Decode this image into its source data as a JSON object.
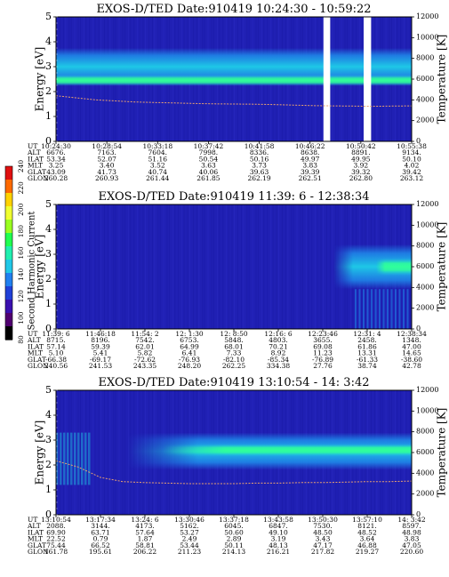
{
  "colors": {
    "background": "#2020b4",
    "band_bright": "#1ec8e6",
    "band_mid": "#1f86e8",
    "band_core": "#30ff9a",
    "temperature_trace": "#e8a070",
    "gap": "#ffffff"
  },
  "colorbar": {
    "label": "Second Harmonic Current",
    "ticks": [
      "240",
      "220",
      "200",
      "180",
      "160",
      "140",
      "120",
      "100",
      "80"
    ],
    "colors": [
      "#e01010",
      "#ff6a00",
      "#ffd200",
      "#f0ff30",
      "#9aff20",
      "#20ff50",
      "#20f0b0",
      "#20c8e8",
      "#2080f0",
      "#2040d8",
      "#3a10b0",
      "#500070",
      "#000000"
    ]
  },
  "row_labels": [
    "UT",
    "ALT",
    "ILAT",
    "MLT",
    "GLAT",
    "GLON"
  ],
  "chart_data": [
    {
      "type": "heatmap",
      "title": "EXOS-D/TED   Date:910419  10:24:30 - 10:59:22",
      "ylabel": "Energy [eV]",
      "y2label": "Temperature [K]",
      "ylim": [
        0,
        5
      ],
      "y2lim": [
        0,
        12000
      ],
      "yticks": [
        "0",
        "1",
        "2",
        "3",
        "4",
        "5"
      ],
      "y2ticks": [
        "0",
        "2000",
        "4000",
        "6000",
        "8000",
        "10000",
        "12000"
      ],
      "bands": [
        {
          "center_ev": 3.0,
          "width_ev": 1.5,
          "level": "bright"
        },
        {
          "center_ev": 2.45,
          "width_ev": 0.45,
          "level": "core"
        }
      ],
      "temperature_k": [
        4400,
        4200,
        4000,
        3900,
        3800,
        3750,
        3700,
        3650,
        3620,
        3600,
        3580,
        3550,
        3500,
        3450,
        3420,
        3400,
        3380,
        3400,
        3420
      ],
      "gaps": [
        [
          0.752,
          0.771
        ],
        [
          0.865,
          0.886
        ]
      ],
      "orbit": {
        "UT": [
          "10:24:30",
          "10:28:54",
          "10:33:18",
          "10:37:42",
          "10:41:58",
          "10:46:22",
          "10:50:42",
          "10:55:38"
        ],
        "ALT": [
          "6676.",
          "7163.",
          "7604.",
          "7998.",
          "8336.",
          "8638.",
          "8891.",
          "9134."
        ],
        "ILAT": [
          "53.34",
          "52.07",
          "51.16",
          "50.54",
          "50.16",
          "49.97",
          "49.95",
          "50.10"
        ],
        "MLT": [
          "3.25",
          "3.40",
          "3.52",
          "3.63",
          "3.73",
          "3.83",
          "3.92",
          "4.02"
        ],
        "GLAT": [
          "43.09",
          "41.73",
          "40.74",
          "40.06",
          "39.63",
          "39.39",
          "39.32",
          "39.42"
        ],
        "GLON": [
          "260.28",
          "260.93",
          "261.44",
          "261.85",
          "262.19",
          "262.51",
          "262.80",
          "263.12"
        ]
      }
    },
    {
      "type": "heatmap",
      "title": "EXOS-D/TED   Date:910419  11:39: 6 - 12:38:34",
      "ylabel": "Energy [eV]",
      "y2label": "Temperature [K]",
      "ylim": [
        0,
        5
      ],
      "y2lim": [
        0,
        12000
      ],
      "yticks": [
        "0",
        "1",
        "2",
        "3",
        "4",
        "5"
      ],
      "y2ticks": [
        "0",
        "2000",
        "4000",
        "6000",
        "8000",
        "10000",
        "12000"
      ],
      "bands": [
        {
          "center_ev": 2.5,
          "width_ev": 1.8,
          "level": "bright",
          "x_start": 0.78
        },
        {
          "center_ev": 2.5,
          "width_ev": 0.7,
          "level": "core",
          "x_start": 0.9
        }
      ],
      "temperature_k": [],
      "gaps": [],
      "orbit": {
        "UT": [
          "11:39: 6",
          "11:46:18",
          "11:54: 2",
          "12: 1:30",
          "12: 8:50",
          "12:16: 6",
          "12:23:46",
          "12:31: 4",
          "12:38:34"
        ],
        "ALT": [
          "8715.",
          "8196.",
          "7542.",
          "6753.",
          "5848.",
          "4803.",
          "3655.",
          "2458.",
          "1348."
        ],
        "ILAT": [
          "57.14",
          "59.39",
          "62.01",
          "64.99",
          "68.01",
          "70.21",
          "69.08",
          "61.86",
          "47.00"
        ],
        "MLT": [
          "5.10",
          "5.41",
          "5.82",
          "6.41",
          "7.33",
          "8.92",
          "11.23",
          "13.31",
          "14.65"
        ],
        "GLAT": [
          "-66.38",
          "-69.17",
          "-72.62",
          "-76.93",
          "-82.10",
          "-85.34",
          "-76.89",
          "-61.33",
          "-38.60"
        ],
        "GLON": [
          "240.56",
          "241.53",
          "243.35",
          "248.20",
          "262.25",
          "334.38",
          "27.76",
          "38.74",
          "42.78"
        ]
      }
    },
    {
      "type": "heatmap",
      "title": "EXOS-D/TED   Date:910419  13:10:54 - 14: 3:42",
      "ylabel": "Energy [eV]",
      "y2label": "Temperature [K]",
      "ylim": [
        0,
        5
      ],
      "y2lim": [
        0,
        12000
      ],
      "yticks": [
        "0",
        "1",
        "2",
        "3",
        "4",
        "5"
      ],
      "y2ticks": [
        "0",
        "2000",
        "4000",
        "6000",
        "8000",
        "10000",
        "12000"
      ],
      "bands": [
        {
          "center_ev": 2.55,
          "width_ev": 1.5,
          "level": "bright",
          "x_start": 0.2
        },
        {
          "center_ev": 2.6,
          "width_ev": 0.5,
          "level": "core",
          "x_start": 0.3
        }
      ],
      "temperature_k": [
        5200,
        4600,
        3600,
        3200,
        3100,
        3050,
        3000,
        3000,
        3000,
        3050,
        3050,
        3100,
        3100,
        3150,
        3200,
        3200,
        3250
      ],
      "gaps": [],
      "orbit": {
        "UT": [
          "13:10:54",
          "13:17:34",
          "13:24: 6",
          "13:30:46",
          "13:37:18",
          "13:43:58",
          "13:50:30",
          "13:57:10",
          "14: 3:42"
        ],
        "ALT": [
          "2088.",
          "3144.",
          "4173.",
          "5162.",
          "6045.",
          "6847.",
          "7530.",
          "8121.",
          "8597."
        ],
        "ILAT": [
          "69.90",
          "63.71",
          "57.64",
          "53.27",
          "50.60",
          "49.10",
          "48.50",
          "48.52",
          "48.98"
        ],
        "MLT": [
          "22.52",
          "0.79",
          "1.87",
          "2.49",
          "2.89",
          "3.19",
          "3.43",
          "3.64",
          "3.83"
        ],
        "GLAT": [
          "75.44",
          "66.52",
          "58.81",
          "53.44",
          "50.11",
          "48.13",
          "47.17",
          "46.88",
          "47.05"
        ],
        "GLON": [
          "161.78",
          "195.61",
          "206.22",
          "211.23",
          "214.13",
          "216.21",
          "217.82",
          "219.27",
          "220.60"
        ]
      }
    }
  ]
}
